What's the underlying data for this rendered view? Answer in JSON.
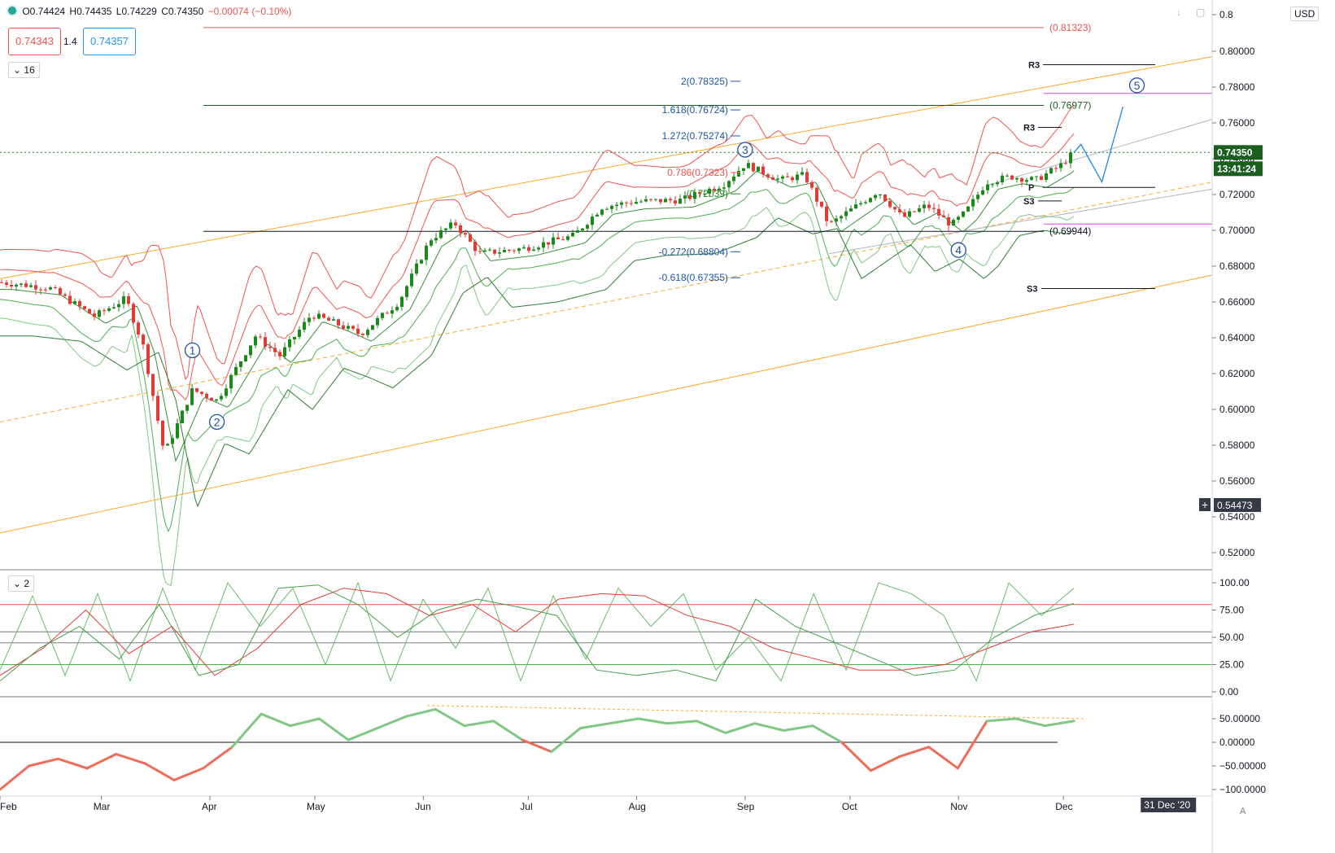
{
  "header": {
    "open_label": "O0.74424",
    "high_label": "H0.74435",
    "low_label": "L0.74229",
    "close_label": "C0.74350",
    "change_label": "−0.00074 (−0.10%)",
    "bid_price": "0.74343",
    "spread": "1.4",
    "ask_price": "0.74357",
    "indicator_count": "16",
    "currency": "USD"
  },
  "panes": {
    "osc_count": "2"
  },
  "price_axis": {
    "ticks": [
      "0.8",
      "0.80000",
      "0.78000",
      "0.76000",
      "0.74000",
      "0.72000",
      "0.70000",
      "0.68000",
      "0.66000",
      "0.64000",
      "0.62000",
      "0.60000",
      "0.58000",
      "0.56000",
      "0.54000",
      "0.52000"
    ],
    "last_price_label": "0.74350",
    "countdown_label": "13:41:24",
    "crosshair_label": "0.54473"
  },
  "stoch_axis": {
    "ticks": [
      "100.00",
      "75.00",
      "50.00",
      "25.00",
      "0.00"
    ]
  },
  "mom_axis": {
    "ticks": [
      "50.00000",
      "0.00000",
      "−50.00000",
      "−100.0000"
    ]
  },
  "time_axis": {
    "labels": [
      "Feb",
      "Mar",
      "Apr",
      "May",
      "Jun",
      "Jul",
      "Aug",
      "Sep",
      "Oct",
      "Nov",
      "Dec"
    ],
    "cursor_label": "31 Dec '20",
    "scale_mode": "A"
  },
  "annotations": {
    "fib_ext": [
      "2(0.78325)",
      "1.618(0.76724)",
      "1.272(0.75274)",
      "0.786(0.7323)",
      "(0.72039)",
      "-0.272(0.68804)",
      "-0.618(0.67355)"
    ],
    "level_813": "(0.81323)",
    "level_769": "(0.76977)",
    "level_699": "(0.69944)",
    "pivot_labels": [
      "R3",
      "R3",
      "P",
      "S3",
      "S3"
    ],
    "wave_labels": [
      "1",
      "2",
      "3",
      "4",
      "5"
    ]
  },
  "colors": {
    "up": "#26a69a",
    "up_candle": "#1b8a1b",
    "down_candle": "#e53935",
    "bb_red": "#ef5350",
    "bb_green": "#4caf50",
    "channel": "#ffa726",
    "fib_blue": "#1e53a0",
    "magenta": "#e040fb"
  },
  "chart_data": [
    {
      "type": "candlestick",
      "title": "",
      "x_range": [
        "2020-02-01",
        "2020-12-31"
      ],
      "ylim": [
        0.51,
        0.81
      ],
      "ohlc_last": {
        "open": 0.74424,
        "high": 0.74435,
        "low": 0.74229,
        "close": 0.7435,
        "change": -0.00074,
        "change_pct": -0.1
      },
      "closes": [
        {
          "x": "2020-02-01",
          "y": 0.671
        },
        {
          "x": "2020-02-15",
          "y": 0.668
        },
        {
          "x": "2020-02-28",
          "y": 0.652
        },
        {
          "x": "2020-03-08",
          "y": 0.662
        },
        {
          "x": "2020-03-13",
          "y": 0.635
        },
        {
          "x": "2020-03-19",
          "y": 0.575
        },
        {
          "x": "2020-03-27",
          "y": 0.611
        },
        {
          "x": "2020-04-03",
          "y": 0.605
        },
        {
          "x": "2020-04-14",
          "y": 0.641
        },
        {
          "x": "2020-04-21",
          "y": 0.63
        },
        {
          "x": "2020-04-30",
          "y": 0.653
        },
        {
          "x": "2020-05-07",
          "y": 0.648
        },
        {
          "x": "2020-05-14",
          "y": 0.642
        },
        {
          "x": "2020-05-25",
          "y": 0.66
        },
        {
          "x": "2020-06-03",
          "y": 0.695
        },
        {
          "x": "2020-06-10",
          "y": 0.704
        },
        {
          "x": "2020-06-17",
          "y": 0.687
        },
        {
          "x": "2020-06-30",
          "y": 0.69
        },
        {
          "x": "2020-07-14",
          "y": 0.697
        },
        {
          "x": "2020-07-22",
          "y": 0.713
        },
        {
          "x": "2020-07-31",
          "y": 0.716
        },
        {
          "x": "2020-08-14",
          "y": 0.717
        },
        {
          "x": "2020-08-26",
          "y": 0.726
        },
        {
          "x": "2020-09-01",
          "y": 0.737
        },
        {
          "x": "2020-09-11",
          "y": 0.728
        },
        {
          "x": "2020-09-18",
          "y": 0.731
        },
        {
          "x": "2020-09-23",
          "y": 0.711
        },
        {
          "x": "2020-09-25",
          "y": 0.703
        },
        {
          "x": "2020-10-09",
          "y": 0.722
        },
        {
          "x": "2020-10-16",
          "y": 0.707
        },
        {
          "x": "2020-10-23",
          "y": 0.714
        },
        {
          "x": "2020-10-30",
          "y": 0.703
        },
        {
          "x": "2020-11-03",
          "y": 0.71
        },
        {
          "x": "2020-11-09",
          "y": 0.727
        },
        {
          "x": "2020-11-16",
          "y": 0.73
        },
        {
          "x": "2020-11-23",
          "y": 0.728
        },
        {
          "x": "2020-11-30",
          "y": 0.736
        },
        {
          "x": "2020-12-04",
          "y": 0.7435
        }
      ],
      "horizontal_levels": [
        0.81323,
        0.76977,
        0.69944
      ],
      "fib_extension_levels": [
        0.78325,
        0.76724,
        0.75274,
        0.7323,
        0.72039,
        0.68804,
        0.67355
      ],
      "elliott_waves": [
        {
          "label": "1",
          "x": "2020-03-27",
          "y": 0.633
        },
        {
          "label": "2",
          "x": "2020-04-03",
          "y": 0.593
        },
        {
          "label": "3",
          "x": "2020-09-01",
          "y": 0.745
        },
        {
          "label": "4",
          "x": "2020-11-01",
          "y": 0.689
        },
        {
          "label": "5",
          "x": "2020-12-22",
          "y": 0.781
        }
      ],
      "projection": [
        {
          "x": "2020-12-04",
          "y": 0.7435
        },
        {
          "x": "2020-12-06",
          "y": 0.748
        },
        {
          "x": "2020-12-12",
          "y": 0.727
        },
        {
          "x": "2020-12-18",
          "y": 0.769
        }
      ]
    },
    {
      "type": "line",
      "title": "",
      "ylim": [
        0,
        100
      ],
      "hlines": [
        80,
        55,
        45,
        25
      ],
      "series": [
        {
          "values": [
            20,
            88,
            15,
            90,
            10,
            95,
            20,
            100,
            60,
            95,
            25,
            100,
            10,
            85,
            40,
            95,
            10,
            88,
            30,
            95,
            60,
            90,
            20,
            50,
            10,
            90,
            20,
            100,
            90,
            70,
            10,
            100,
            70,
            95
          ]
        },
        {
          "values": [
            15,
            40,
            75,
            35,
            60,
            15,
            40,
            80,
            95,
            90,
            70,
            80,
            55,
            85,
            90,
            88,
            70,
            60,
            40,
            30,
            20,
            20,
            25,
            40,
            55,
            62
          ]
        },
        {
          "values": [
            10,
            40,
            60,
            30,
            80,
            15,
            25,
            95,
            98,
            80,
            50,
            75,
            85,
            78,
            70,
            20,
            15,
            20,
            10,
            85,
            60,
            45,
            30,
            15,
            20,
            50,
            70,
            81
          ]
        }
      ]
    },
    {
      "type": "line",
      "title": "",
      "ylim": [
        -100,
        70
      ],
      "series": [
        {
          "values": [
            -100,
            -50,
            -35,
            -55,
            -25,
            -45,
            -80,
            -55,
            -10,
            60,
            35,
            50,
            5,
            30,
            55,
            70,
            35,
            45,
            5,
            -20,
            30,
            40,
            50,
            40,
            45,
            20,
            40,
            25,
            35,
            0,
            -60,
            -30,
            -10,
            -55,
            45,
            50,
            35,
            45
          ]
        }
      ]
    }
  ]
}
